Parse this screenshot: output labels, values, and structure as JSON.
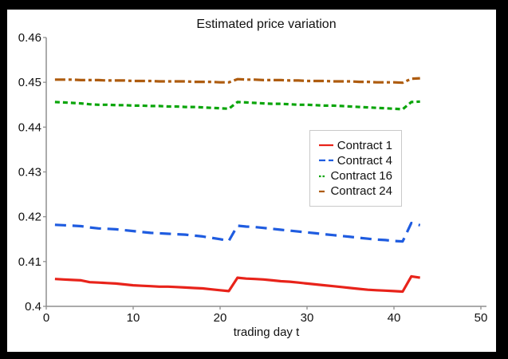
{
  "figure": {
    "frame_color": "#000000",
    "background_color": "#ffffff"
  },
  "chart_data": {
    "type": "line",
    "title": "Estimated price variation",
    "xlabel": "trading day t",
    "ylabel": "",
    "xlim": [
      0,
      50
    ],
    "ylim": [
      0.4,
      0.46
    ],
    "grid": false,
    "axis_color": "#8f8f8f",
    "tick_label_color": "#111111",
    "legend_position": "center-right",
    "legend_border_color": "#c9c9c9",
    "xticks": {
      "values": [
        0,
        10,
        20,
        30,
        40,
        50
      ],
      "labels": [
        "0",
        "10",
        "20",
        "30",
        "40",
        "50"
      ]
    },
    "yticks": {
      "values": [
        0.4,
        0.41,
        0.42,
        0.43,
        0.44,
        0.45,
        0.46
      ],
      "labels": [
        "0.4",
        "0.41",
        "0.42",
        "0.43",
        "0.44",
        "0.45",
        "0.46"
      ]
    },
    "x": [
      1,
      2,
      3,
      4,
      5,
      6,
      7,
      8,
      9,
      10,
      11,
      12,
      13,
      14,
      15,
      16,
      17,
      18,
      19,
      20,
      21,
      22,
      23,
      24,
      25,
      26,
      27,
      28,
      29,
      30,
      31,
      32,
      33,
      34,
      35,
      36,
      37,
      38,
      39,
      40,
      41,
      42,
      43
    ],
    "series": [
      {
        "name": "Contract 1",
        "color": "#e8231a",
        "line_style": "solid",
        "values": [
          0.4061,
          0.406,
          0.4059,
          0.4058,
          0.4054,
          0.4053,
          0.4052,
          0.4051,
          0.4049,
          0.4047,
          0.4046,
          0.4045,
          0.4044,
          0.4044,
          0.4043,
          0.4042,
          0.4041,
          0.404,
          0.4038,
          0.4036,
          0.4034,
          0.4064,
          0.4062,
          0.4061,
          0.406,
          0.4058,
          0.4056,
          0.4055,
          0.4053,
          0.4051,
          0.4049,
          0.4047,
          0.4045,
          0.4043,
          0.4041,
          0.4039,
          0.4037,
          0.4036,
          0.4035,
          0.4034,
          0.4033,
          0.4067,
          0.4064
        ]
      },
      {
        "name": "Contract 4",
        "color": "#1f5ce0",
        "line_style": "dashed",
        "values": [
          0.4182,
          0.4181,
          0.418,
          0.4179,
          0.4176,
          0.4174,
          0.4173,
          0.4172,
          0.417,
          0.4168,
          0.4166,
          0.4164,
          0.4163,
          0.4162,
          0.4161,
          0.416,
          0.4158,
          0.4156,
          0.4153,
          0.415,
          0.4146,
          0.418,
          0.4178,
          0.4177,
          0.4175,
          0.4173,
          0.4171,
          0.4169,
          0.4167,
          0.4165,
          0.4163,
          0.4161,
          0.4159,
          0.4157,
          0.4155,
          0.4153,
          0.4151,
          0.4149,
          0.4148,
          0.4146,
          0.4145,
          0.4186,
          0.4181
        ]
      },
      {
        "name": "Contract 16",
        "color": "#0aa50a",
        "line_style": "dotted",
        "values": [
          0.4456,
          0.4455,
          0.4454,
          0.4453,
          0.4451,
          0.445,
          0.445,
          0.4449,
          0.4449,
          0.4448,
          0.4448,
          0.4447,
          0.4447,
          0.4446,
          0.4446,
          0.4445,
          0.4445,
          0.4444,
          0.4443,
          0.4442,
          0.4441,
          0.4456,
          0.4455,
          0.4454,
          0.4453,
          0.4452,
          0.4452,
          0.4451,
          0.445,
          0.445,
          0.4449,
          0.4448,
          0.4448,
          0.4447,
          0.4446,
          0.4445,
          0.4444,
          0.4443,
          0.4442,
          0.4441,
          0.444,
          0.4456,
          0.4457
        ]
      },
      {
        "name": "Contract 24",
        "color": "#ae5c0f",
        "line_style": "dash-dot",
        "values": [
          0.4506,
          0.4506,
          0.4506,
          0.4505,
          0.4505,
          0.4505,
          0.4504,
          0.4504,
          0.4504,
          0.4503,
          0.4503,
          0.4503,
          0.4502,
          0.4502,
          0.4502,
          0.4502,
          0.4501,
          0.4501,
          0.4501,
          0.45,
          0.45,
          0.4507,
          0.4506,
          0.4506,
          0.4505,
          0.4505,
          0.4505,
          0.4504,
          0.4504,
          0.4503,
          0.4503,
          0.4503,
          0.4502,
          0.4502,
          0.4502,
          0.4501,
          0.4501,
          0.45,
          0.45,
          0.45,
          0.4499,
          0.4508,
          0.4509
        ]
      }
    ]
  }
}
